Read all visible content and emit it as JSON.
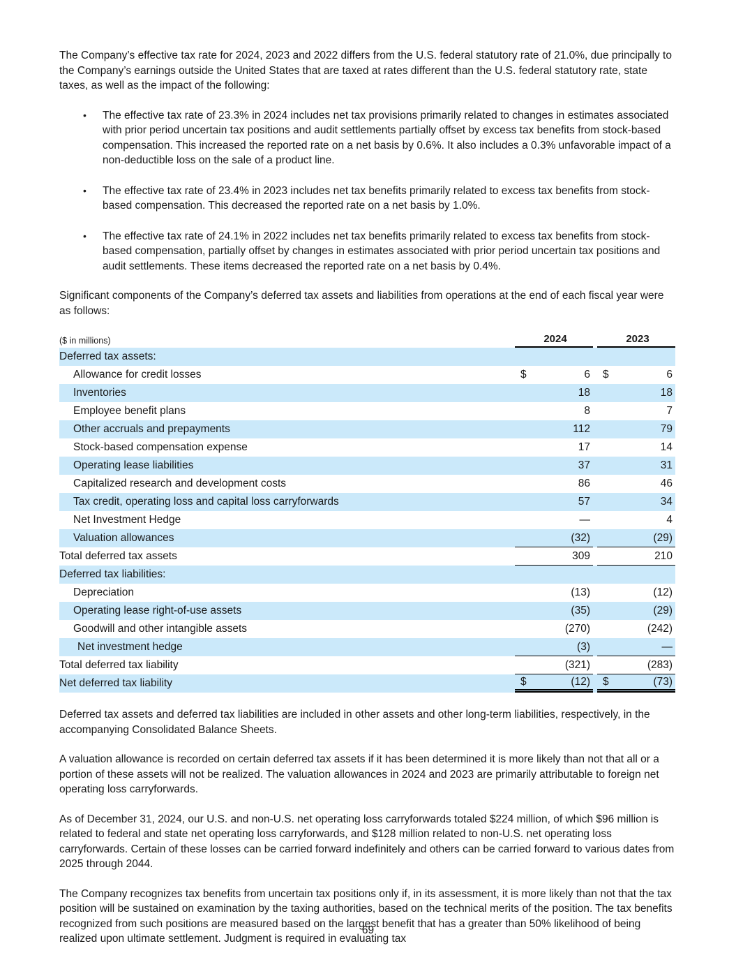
{
  "colors": {
    "row_shade": "#cbe9fa",
    "rule": "#000000"
  },
  "paragraphs": {
    "intro": "The Company’s effective tax rate for 2024, 2023 and 2022 differs from the U.S. federal statutory rate of 21.0%, due principally to the Company’s earnings outside the United States that are taxed at rates different than the U.S. federal statutory rate, state taxes, as well as the impact of the following:",
    "bullets": [
      "The effective tax rate of 23.3% in 2024 includes net tax provisions primarily related to changes in estimates associated with prior period uncertain tax positions and audit settlements partially offset by excess tax benefits from stock-based compensation.  This increased the reported rate on a net basis by 0.6%.  It also includes a 0.3% unfavorable impact of a non-deductible loss on the sale of a product line.",
      "The effective tax rate of 23.4% in 2023 includes net tax benefits primarily related to excess tax benefits from stock-based compensation.  This decreased the reported rate on a net basis by 1.0%.",
      "The effective tax rate of 24.1% in 2022 includes net tax benefits primarily related to excess tax benefits from stock-based compensation, partially offset by changes in estimates associated with prior period uncertain tax positions and audit settlements.  These items decreased the reported rate on a net basis by 0.4%."
    ],
    "table_intro": "Significant components of the Company’s deferred tax assets and liabilities from operations at the end of each fiscal year were as follows:",
    "after_table_1": "Deferred tax assets and deferred tax liabilities are included in other assets and other long-term liabilities, respectively, in the accompanying Consolidated Balance Sheets.",
    "after_table_2": "A valuation allowance is recorded on certain deferred tax assets if it has been determined it is more likely than not that all or a portion of these assets will not be realized.  The valuation allowances in 2024 and 2023 are primarily attributable to foreign net operating loss carryforwards.",
    "after_table_3": "As of December 31, 2024, our U.S. and non-U.S. net operating loss carryforwards totaled $224 million, of which $96 million is related to federal and state net operating loss carryforwards, and $128 million related to non-U.S. net operating loss carryforwards.  Certain of these losses can be carried forward indefinitely and others can be carried forward to various dates from 2025 through 2044.",
    "after_table_4": "The Company recognizes tax benefits from uncertain tax positions only if, in its assessment, it is more likely than not that the tax position will be sustained on examination by the taxing authorities, based on the technical merits of the position.  The tax benefits recognized from such positions are measured based on the largest benefit that has a greater than 50% likelihood of being realized upon ultimate settlement.  Judgment is required in evaluating tax"
  },
  "table": {
    "units_label": "($ in millions)",
    "columns": [
      "2024",
      "2023"
    ],
    "rows": [
      {
        "label": "Deferred tax assets:",
        "indent": 0,
        "shaded": true,
        "d24": "",
        "v24": "",
        "d23": "",
        "v23": "",
        "underline": ""
      },
      {
        "label": "Allowance for credit losses",
        "indent": 20,
        "shaded": false,
        "d24": "$",
        "v24": "6",
        "d23": "$",
        "v23": "6",
        "underline": ""
      },
      {
        "label": "Inventories",
        "indent": 20,
        "shaded": true,
        "d24": "",
        "v24": "18",
        "d23": "",
        "v23": "18",
        "underline": ""
      },
      {
        "label": "Employee benefit plans",
        "indent": 20,
        "shaded": false,
        "d24": "",
        "v24": "8",
        "d23": "",
        "v23": "7",
        "underline": ""
      },
      {
        "label": "Other accruals and prepayments",
        "indent": 20,
        "shaded": true,
        "d24": "",
        "v24": "112",
        "d23": "",
        "v23": "79",
        "underline": ""
      },
      {
        "label": "Stock-based compensation expense",
        "indent": 20,
        "shaded": false,
        "d24": "",
        "v24": "17",
        "d23": "",
        "v23": "14",
        "underline": ""
      },
      {
        "label": "Operating lease liabilities",
        "indent": 20,
        "shaded": true,
        "d24": "",
        "v24": "37",
        "d23": "",
        "v23": "31",
        "underline": ""
      },
      {
        "label": "Capitalized research and development costs",
        "indent": 20,
        "shaded": false,
        "d24": "",
        "v24": "86",
        "d23": "",
        "v23": "46",
        "underline": ""
      },
      {
        "label": "Tax credit, operating loss and capital loss carryforwards",
        "indent": 20,
        "shaded": true,
        "d24": "",
        "v24": "57",
        "d23": "",
        "v23": "34",
        "underline": ""
      },
      {
        "label": "Net Investment Hedge",
        "indent": 20,
        "shaded": false,
        "d24": "",
        "v24": "—",
        "d23": "",
        "v23": "4",
        "underline": ""
      },
      {
        "label": "Valuation allowances",
        "indent": 20,
        "shaded": true,
        "d24": "",
        "v24": "(32)",
        "d23": "",
        "v23": "(29)",
        "underline": "single"
      },
      {
        "label": "Total deferred tax assets",
        "indent": 0,
        "shaded": false,
        "d24": "",
        "v24": "309",
        "d23": "",
        "v23": "210",
        "underline": "single"
      },
      {
        "label": "Deferred tax liabilities:",
        "indent": 0,
        "shaded": true,
        "d24": "",
        "v24": "",
        "d23": "",
        "v23": "",
        "underline": ""
      },
      {
        "label": "Depreciation",
        "indent": 20,
        "shaded": false,
        "d24": "",
        "v24": "(13)",
        "d23": "",
        "v23": "(12)",
        "underline": ""
      },
      {
        "label": "Operating lease right-of-use assets",
        "indent": 20,
        "shaded": true,
        "d24": "",
        "v24": "(35)",
        "d23": "",
        "v23": "(29)",
        "underline": ""
      },
      {
        "label": "Goodwill and other intangible assets",
        "indent": 20,
        "shaded": false,
        "d24": "",
        "v24": "(270)",
        "d23": "",
        "v23": "(242)",
        "underline": ""
      },
      {
        "label": "Net investment hedge",
        "indent": 26,
        "shaded": true,
        "d24": "",
        "v24": "(3)",
        "d23": "",
        "v23": "—",
        "underline": "single"
      },
      {
        "label": "Total deferred tax liability",
        "indent": 0,
        "shaded": false,
        "d24": "",
        "v24": "(321)",
        "d23": "",
        "v23": "(283)",
        "underline": "single"
      },
      {
        "label": "Net deferred tax liability",
        "indent": 0,
        "shaded": true,
        "d24": "$",
        "v24": "(12)",
        "d23": "$",
        "v23": "(73)",
        "underline": "double"
      }
    ]
  },
  "page": {
    "number": "69"
  }
}
